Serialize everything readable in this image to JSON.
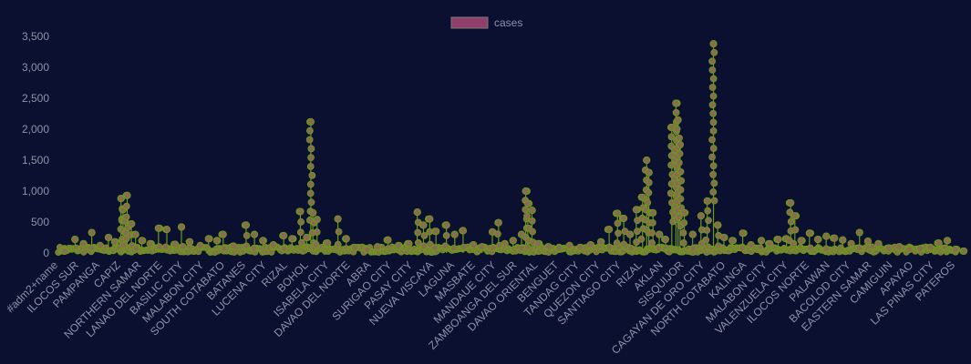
{
  "chart_data": {
    "type": "line",
    "title": "",
    "xlabel": "",
    "ylabel": "",
    "legend": {
      "position": "top-center",
      "entries": [
        "cases"
      ]
    },
    "grid": false,
    "ylim": [
      0,
      3500
    ],
    "yticks": [
      {
        "value": 0,
        "label": "0"
      },
      {
        "value": 500,
        "label": "500"
      },
      {
        "value": 1000,
        "label": "1,000"
      },
      {
        "value": 1500,
        "label": "1,500"
      },
      {
        "value": 2000,
        "label": "2,000"
      },
      {
        "value": 2500,
        "label": "2,500"
      },
      {
        "value": 3000,
        "label": "3,000"
      },
      {
        "value": 3500,
        "label": "3,500"
      }
    ],
    "categories": [
      "#adm2+name",
      "ILOCOS SUR",
      "PAMPANGA",
      "CAPIZ",
      "NORTHERN SAMAR",
      "LANAO DEL NORTE",
      "BASILIC CITY",
      "MALABON CITY",
      "SOUTH COTABATO",
      "BATANES",
      "LUCENA CITY",
      "RIZAL",
      "BOHOL",
      "ISABELA CITY",
      "DAVAO DEL NORTE",
      "ABRA",
      "SURIGAO CITY",
      "PASAY CITY",
      "NUEVA VISCAYA",
      "LAGUNA",
      "MASBATE",
      "MANDAUE CITY",
      "ZAMBOANGA DEL SUR",
      "DAVAO ORIENTAL",
      "BENGUET",
      "TANDAG CITY",
      "QUEZON CITY",
      "SANTIAGO CITY",
      "RIZAL",
      "AKLAN",
      "SISQUIJOR",
      "CAGAYAN DE ORO CITY",
      "NORTH COTABATO",
      "KALINGA",
      "MALABON CITY",
      "VALENZUELA CITY",
      "ILOCOS NORTE",
      "PALAWAN",
      "BACOLOD CITY",
      "EASTERN SAMAR",
      "CAMIGUIN",
      "APAYAO",
      "LAS PINAS CITY",
      "PATEROS"
    ],
    "series": [
      {
        "name": "cases",
        "color": "#6a9a1c",
        "point_color": "#8a6a50",
        "legend_color": "#8f3f6a",
        "peaks": [
          {
            "x": 0.3,
            "y": 30
          },
          {
            "x": 0.8,
            "y": 220
          },
          {
            "x": 1.2,
            "y": 150
          },
          {
            "x": 1.6,
            "y": 330
          },
          {
            "x": 2.0,
            "y": 120
          },
          {
            "x": 2.4,
            "y": 250
          },
          {
            "x": 2.7,
            "y": 180
          },
          {
            "x": 3.0,
            "y": 880
          },
          {
            "x": 3.1,
            "y": 700
          },
          {
            "x": 3.2,
            "y": 520
          },
          {
            "x": 3.3,
            "y": 930
          },
          {
            "x": 3.5,
            "y": 470
          },
          {
            "x": 3.7,
            "y": 300
          },
          {
            "x": 4.0,
            "y": 200
          },
          {
            "x": 4.4,
            "y": 150
          },
          {
            "x": 4.8,
            "y": 400
          },
          {
            "x": 5.2,
            "y": 380
          },
          {
            "x": 5.6,
            "y": 140
          },
          {
            "x": 5.9,
            "y": 420
          },
          {
            "x": 6.3,
            "y": 180
          },
          {
            "x": 6.8,
            "y": 120
          },
          {
            "x": 7.2,
            "y": 230
          },
          {
            "x": 7.6,
            "y": 200
          },
          {
            "x": 7.9,
            "y": 300
          },
          {
            "x": 8.4,
            "y": 110
          },
          {
            "x": 9.0,
            "y": 450
          },
          {
            "x": 9.4,
            "y": 300
          },
          {
            "x": 9.8,
            "y": 200
          },
          {
            "x": 10.3,
            "y": 130
          },
          {
            "x": 10.8,
            "y": 280
          },
          {
            "x": 11.2,
            "y": 230
          },
          {
            "x": 11.6,
            "y": 670
          },
          {
            "x": 11.9,
            "y": 250
          },
          {
            "x": 12.1,
            "y": 2120
          },
          {
            "x": 12.2,
            "y": 650
          },
          {
            "x": 12.4,
            "y": 540
          },
          {
            "x": 12.9,
            "y": 160
          },
          {
            "x": 13.4,
            "y": 550
          },
          {
            "x": 13.8,
            "y": 230
          },
          {
            "x": 14.2,
            "y": 90
          },
          {
            "x": 14.8,
            "y": 50
          },
          {
            "x": 15.3,
            "y": 100
          },
          {
            "x": 15.8,
            "y": 210
          },
          {
            "x": 16.3,
            "y": 120
          },
          {
            "x": 16.8,
            "y": 150
          },
          {
            "x": 17.2,
            "y": 660
          },
          {
            "x": 17.5,
            "y": 450
          },
          {
            "x": 17.8,
            "y": 550
          },
          {
            "x": 18.1,
            "y": 350
          },
          {
            "x": 18.6,
            "y": 450
          },
          {
            "x": 19.0,
            "y": 300
          },
          {
            "x": 19.4,
            "y": 360
          },
          {
            "x": 19.9,
            "y": 130
          },
          {
            "x": 20.3,
            "y": 100
          },
          {
            "x": 20.8,
            "y": 340
          },
          {
            "x": 21.1,
            "y": 490
          },
          {
            "x": 21.4,
            "y": 150
          },
          {
            "x": 21.8,
            "y": 200
          },
          {
            "x": 22.2,
            "y": 300
          },
          {
            "x": 22.4,
            "y": 1000
          },
          {
            "x": 22.5,
            "y": 800
          },
          {
            "x": 22.7,
            "y": 690
          },
          {
            "x": 23.0,
            "y": 150
          },
          {
            "x": 23.5,
            "y": 100
          },
          {
            "x": 24.0,
            "y": 80
          },
          {
            "x": 24.5,
            "y": 120
          },
          {
            "x": 25.0,
            "y": 90
          },
          {
            "x": 25.5,
            "y": 130
          },
          {
            "x": 26.0,
            "y": 180
          },
          {
            "x": 26.4,
            "y": 380
          },
          {
            "x": 26.8,
            "y": 640
          },
          {
            "x": 27.1,
            "y": 560
          },
          {
            "x": 27.4,
            "y": 300
          },
          {
            "x": 27.7,
            "y": 700
          },
          {
            "x": 28.0,
            "y": 900
          },
          {
            "x": 28.2,
            "y": 1500
          },
          {
            "x": 28.3,
            "y": 1300
          },
          {
            "x": 28.5,
            "y": 650
          },
          {
            "x": 28.8,
            "y": 300
          },
          {
            "x": 29.1,
            "y": 220
          },
          {
            "x": 29.4,
            "y": 2030
          },
          {
            "x": 29.6,
            "y": 2420
          },
          {
            "x": 29.7,
            "y": 2150
          },
          {
            "x": 29.8,
            "y": 1750
          },
          {
            "x": 30.0,
            "y": 650
          },
          {
            "x": 30.4,
            "y": 300
          },
          {
            "x": 30.8,
            "y": 600
          },
          {
            "x": 31.1,
            "y": 840
          },
          {
            "x": 31.4,
            "y": 3380
          },
          {
            "x": 31.6,
            "y": 450
          },
          {
            "x": 31.9,
            "y": 250
          },
          {
            "x": 32.3,
            "y": 200
          },
          {
            "x": 32.8,
            "y": 320
          },
          {
            "x": 33.2,
            "y": 130
          },
          {
            "x": 33.7,
            "y": 200
          },
          {
            "x": 34.1,
            "y": 150
          },
          {
            "x": 34.5,
            "y": 220
          },
          {
            "x": 34.9,
            "y": 230
          },
          {
            "x": 35.1,
            "y": 810
          },
          {
            "x": 35.3,
            "y": 600
          },
          {
            "x": 35.6,
            "y": 200
          },
          {
            "x": 36.0,
            "y": 320
          },
          {
            "x": 36.4,
            "y": 220
          },
          {
            "x": 36.8,
            "y": 270
          },
          {
            "x": 37.2,
            "y": 240
          },
          {
            "x": 37.6,
            "y": 210
          },
          {
            "x": 38.0,
            "y": 150
          },
          {
            "x": 38.4,
            "y": 330
          },
          {
            "x": 38.8,
            "y": 190
          },
          {
            "x": 39.3,
            "y": 150
          },
          {
            "x": 39.8,
            "y": 80
          },
          {
            "x": 40.3,
            "y": 100
          },
          {
            "x": 40.8,
            "y": 60
          },
          {
            "x": 41.3,
            "y": 70
          },
          {
            "x": 41.8,
            "y": 90
          },
          {
            "x": 42.2,
            "y": 160
          },
          {
            "x": 42.6,
            "y": 200
          },
          {
            "x": 43.0,
            "y": 60
          },
          {
            "x": 43.4,
            "y": 30
          }
        ]
      }
    ]
  }
}
